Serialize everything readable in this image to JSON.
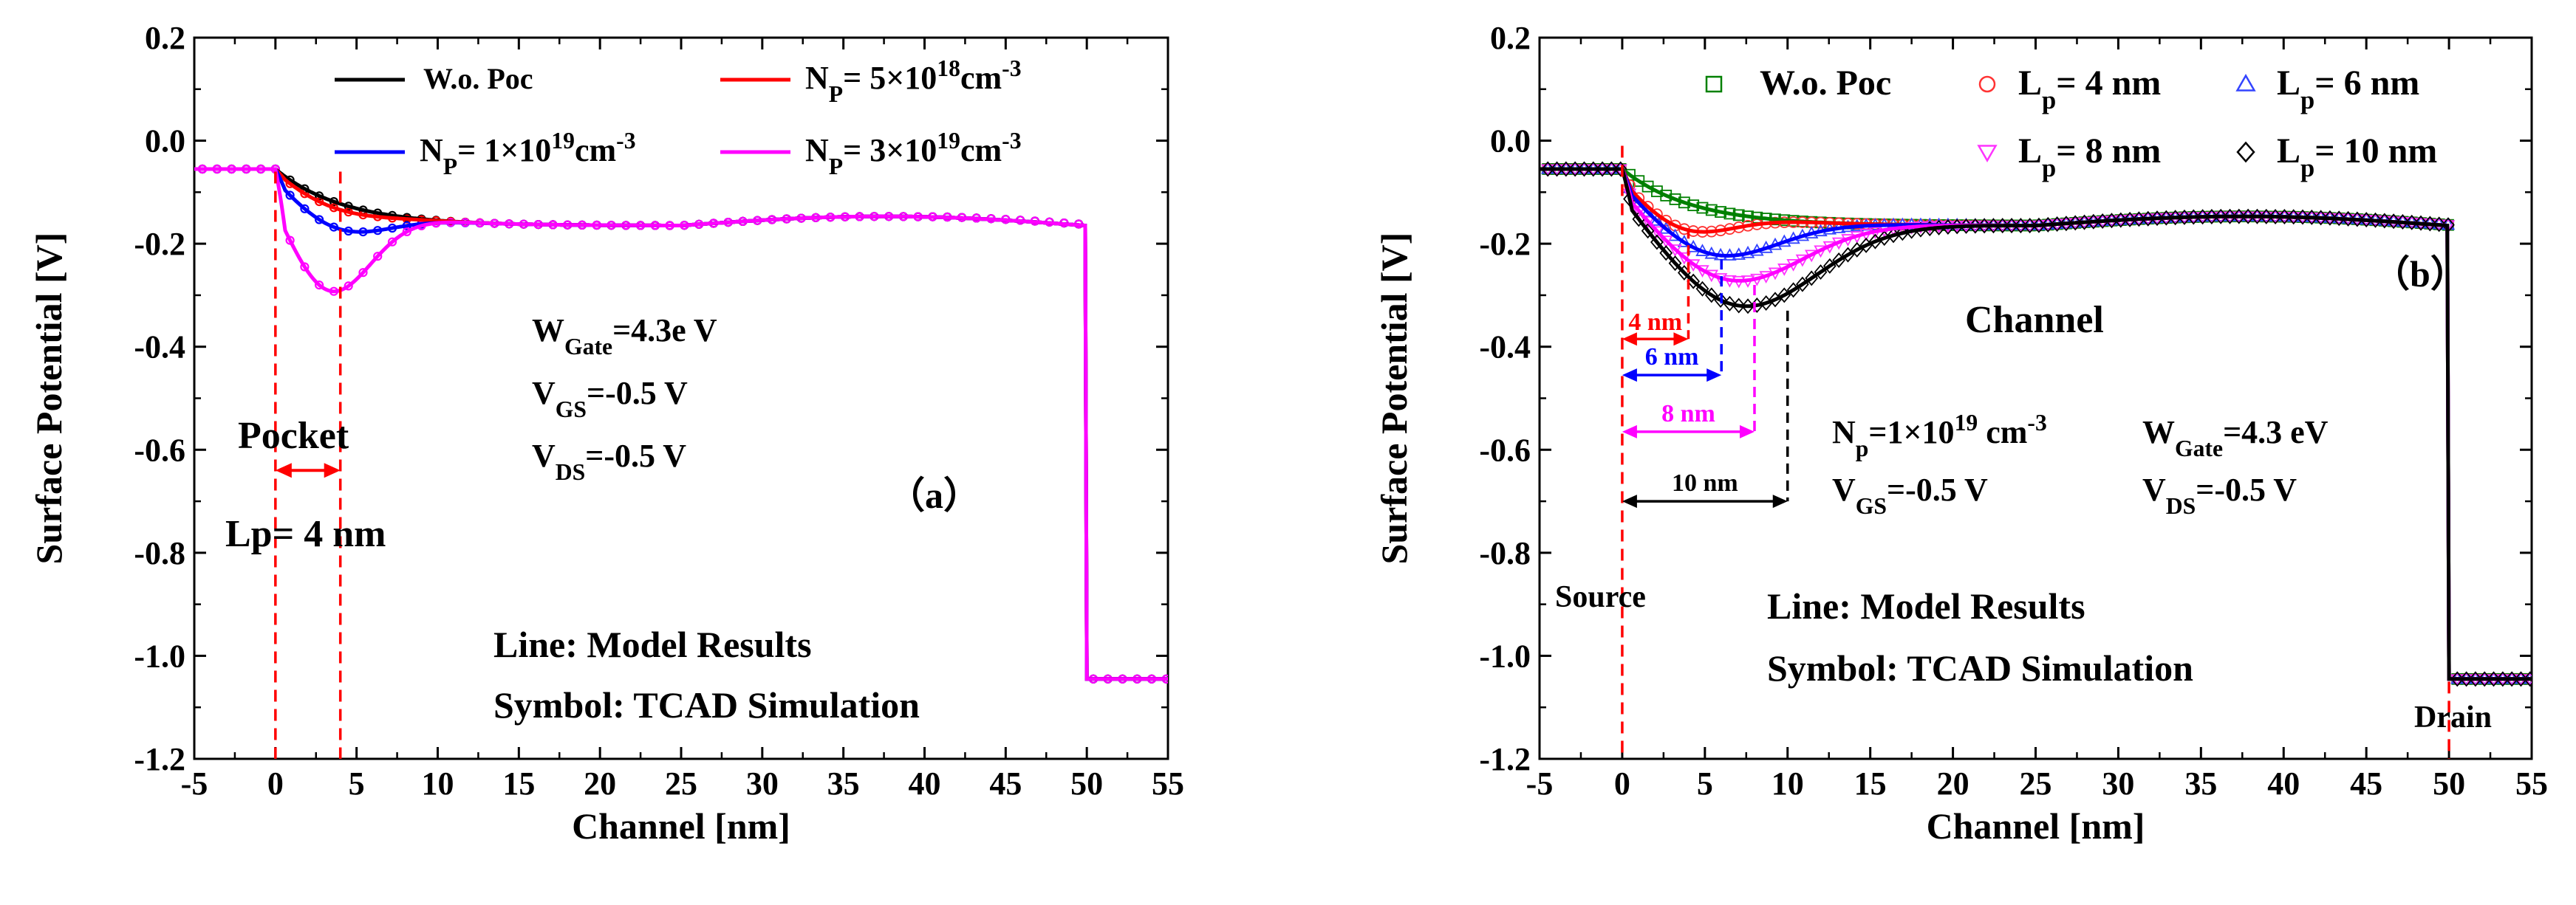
{
  "colors": {
    "black": "#000000",
    "red": "#ff0000",
    "blue": "#0000ff",
    "magenta": "#ff00ff",
    "green": "#008000",
    "marker_red": "#ff3333",
    "marker_blue": "#3344ff",
    "marker_magenta": "#ff33ff"
  },
  "chart_data": [
    {
      "id": "a",
      "type": "line",
      "panel_label": "（a）",
      "xlabel": "Channel [nm]",
      "ylabel": "Surface Potential [V]",
      "xlim": [
        -5,
        55
      ],
      "ylim": [
        -1.2,
        0.2
      ],
      "xticks": [
        -5,
        0,
        5,
        10,
        15,
        20,
        25,
        30,
        35,
        40,
        45,
        50,
        55
      ],
      "yticks": [
        0.2,
        0.0,
        -0.2,
        -0.4,
        -0.6,
        -0.8,
        -1.0,
        -1.2
      ],
      "ytick_labels": [
        "0.2",
        "0.0",
        "-0.2",
        "-0.4",
        "-0.6",
        "-0.8",
        "-1.0",
        "-1.2"
      ],
      "legend": [
        {
          "name": "W.o. Poc",
          "color": "black"
        },
        {
          "name_main": "N",
          "name_sub": "P",
          "name_mid": "= 5×10",
          "name_sup": "18",
          "name_end": "cm",
          "name_sup2": "-3",
          "color": "red"
        },
        {
          "name_main": "N",
          "name_sub": "P",
          "name_mid": "= 1×10",
          "name_sup": "19",
          "name_end": "cm",
          "name_sup2": "-3",
          "color": "blue"
        },
        {
          "name_main": "N",
          "name_sub": "P",
          "name_mid": "= 3×10",
          "name_sup": "19",
          "name_end": "cm",
          "name_sup2": "-3",
          "color": "magenta"
        }
      ],
      "series": [
        {
          "name": "W.o. Poc",
          "color": "black",
          "dip_x": 0,
          "dip_y": -0.05
        },
        {
          "name": "Np = 5e18",
          "color": "red",
          "dip_x": 3.6,
          "dip_y": -0.13
        },
        {
          "name": "Np = 1e19",
          "color": "blue",
          "dip_x": 3.8,
          "dip_y": -0.17
        },
        {
          "name": "Np = 3e19",
          "color": "magenta",
          "dip_x": 3.2,
          "dip_y": -0.29
        }
      ],
      "annotations": {
        "params": [
          {
            "main": "W",
            "sub": "Gate",
            "rest": "=4.3e V"
          },
          {
            "main": "V",
            "sub": "GS",
            "rest": "=-0.5 V"
          },
          {
            "main": "V",
            "sub": "DS",
            "rest": "=-0.5 V"
          }
        ],
        "pocket": "Pocket",
        "lp": "Lp= 4 nm",
        "line_note": "Line: Model Results",
        "symbol_note": "Symbol: TCAD Simulation"
      }
    },
    {
      "id": "b",
      "type": "line",
      "panel_label": "（b）",
      "xlabel": "Channel [nm]",
      "ylabel": "Surface Potential [V]",
      "xlim": [
        -5,
        55
      ],
      "ylim": [
        -1.2,
        0.2
      ],
      "xticks": [
        -5,
        0,
        5,
        10,
        15,
        20,
        25,
        30,
        35,
        40,
        45,
        50,
        55
      ],
      "yticks": [
        0.2,
        0.0,
        -0.2,
        -0.4,
        -0.6,
        -0.8,
        -1.0,
        -1.2
      ],
      "ytick_labels": [
        "0.2",
        "0.0",
        "-0.2",
        "-0.4",
        "-0.6",
        "-0.8",
        "-1.0",
        "-1.2"
      ],
      "legend": [
        {
          "name": "W.o. Poc",
          "color": "green",
          "marker": "square"
        },
        {
          "main": "L",
          "sub": "p",
          "rest": "= 4 nm",
          "color": "red",
          "marker": "circle"
        },
        {
          "main": "L",
          "sub": "p",
          "rest": "=  6 nm",
          "color": "blue",
          "marker": "triangle-up"
        },
        {
          "main": "L",
          "sub": "p",
          "rest": "= 8 nm",
          "color": "magenta",
          "marker": "triangle-down"
        },
        {
          "main": "L",
          "sub": "p",
          "rest": "= 10 nm",
          "color": "black",
          "marker": "diamond"
        }
      ],
      "series": [
        {
          "name": "W.o. Poc",
          "color": "green",
          "dip_x": 0,
          "dip_y": -0.05
        },
        {
          "name": "Lp = 4 nm",
          "color": "red",
          "dip_x": 3.6,
          "dip_y": -0.17
        },
        {
          "name": "Lp = 6 nm",
          "color": "blue",
          "dip_x": 5.4,
          "dip_y": -0.22
        },
        {
          "name": "Lp = 8 nm",
          "color": "magenta",
          "dip_x": 6.4,
          "dip_y": -0.27
        },
        {
          "name": "Lp = 10 nm",
          "color": "black",
          "dip_x": 7.0,
          "dip_y": -0.32
        }
      ],
      "annotations": {
        "channel": "Channel",
        "source": "Source",
        "drain": "Drain",
        "dims": [
          "4 nm",
          "6 nm",
          "8 nm",
          "10 nm"
        ],
        "np": {
          "main": "N",
          "sub": "p",
          "mid": "=1×10",
          "sup": "19",
          "end": " cm",
          "sup2": "-3"
        },
        "params": [
          {
            "main": "W",
            "sub": "Gate",
            "rest": "=4.3 eV"
          },
          {
            "main": "V",
            "sub": "GS",
            "rest": "=-0.5 V"
          },
          {
            "main": "V",
            "sub": "DS",
            "rest": "=-0.5 V"
          }
        ],
        "line_note": "Line: Model Results",
        "symbol_note": "Symbol: TCAD Simulation"
      }
    }
  ]
}
